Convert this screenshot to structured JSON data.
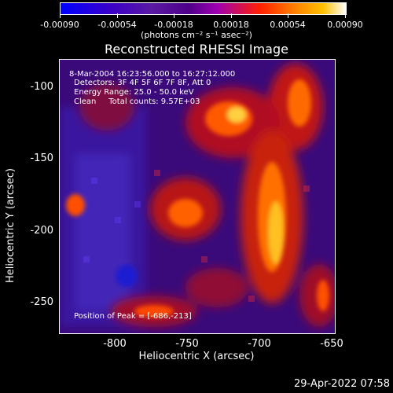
{
  "colorbar": {
    "tick_labels": [
      "-0.00090",
      "-0.00054",
      "-0.00018",
      "0.00018",
      "0.00054",
      "0.00090"
    ],
    "unit_label": "(photons cm⁻² s⁻¹ asec⁻²)"
  },
  "image": {
    "title": "Reconstructed RHESSI Image",
    "annotations": {
      "time_range": "8-Mar-2004 16:23:56.000 to 16:27:12.000",
      "detectors": "Detectors: 3F 4F 5F 6F 7F 8F, Att 0",
      "energy_range": "Energy Range: 25.0 - 50.0 keV",
      "clean_counts": "Clean     Total counts: 9.57E+03",
      "peak_position": "Position of Peak = [-686,-213]"
    },
    "x_axis": {
      "label": "Heliocentric X (arcsec)",
      "ticks": [
        "-800",
        "-750",
        "-700",
        "-650"
      ]
    },
    "y_axis": {
      "label": "Heliocentric Y (arcsec)",
      "ticks": [
        "-100",
        "-150",
        "-200",
        "-250"
      ]
    }
  },
  "footer": {
    "date": "29-Apr-2022 07:58"
  }
}
